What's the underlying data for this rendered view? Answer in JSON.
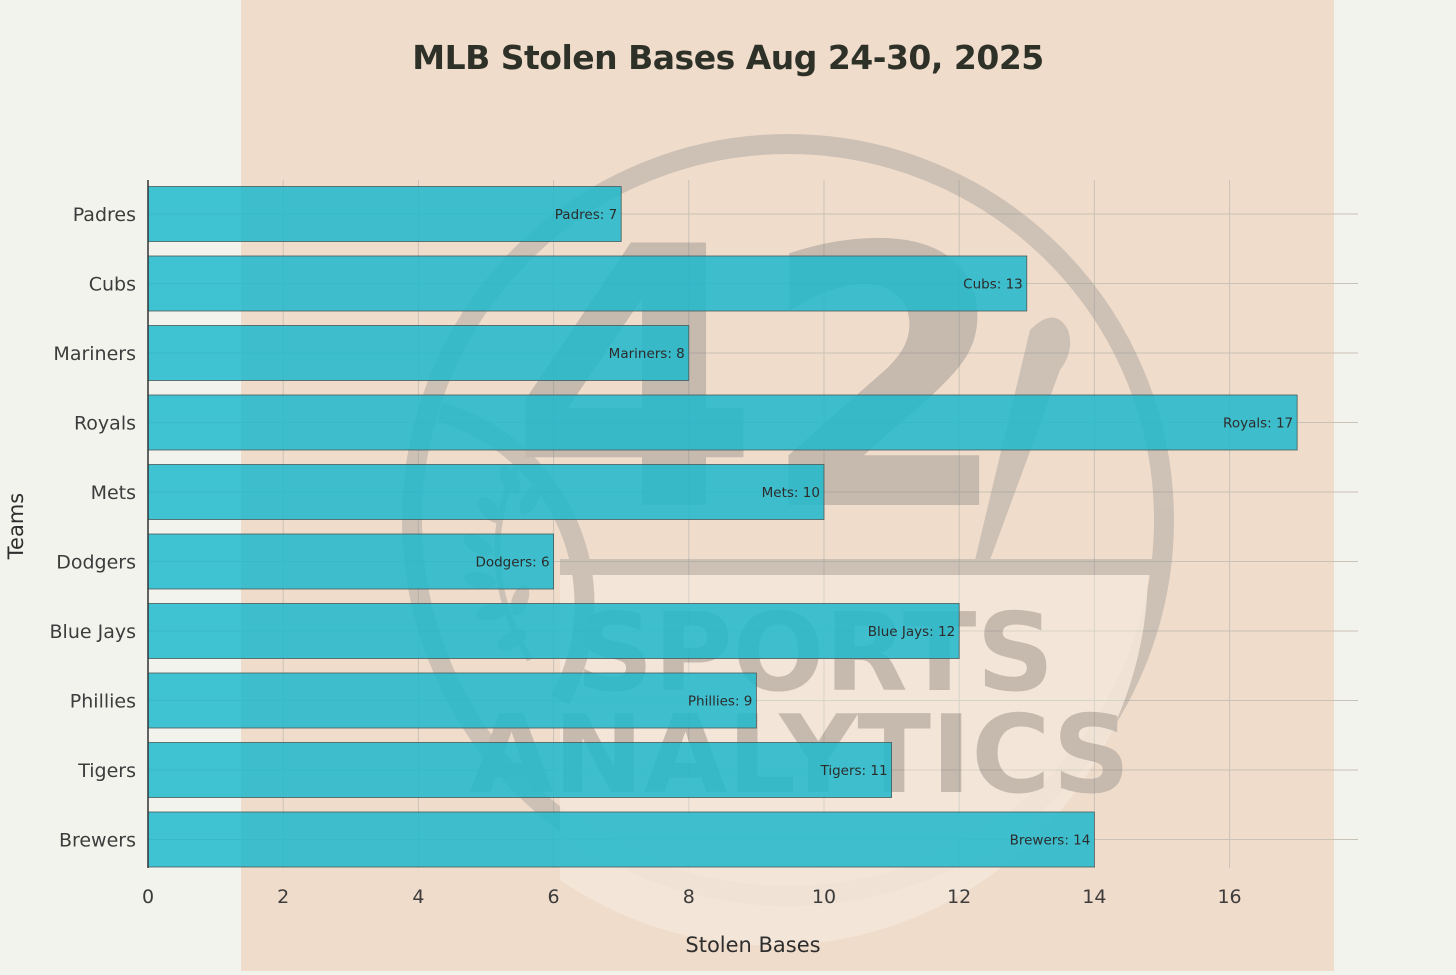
{
  "chart_data": {
    "type": "bar",
    "orientation": "horizontal",
    "title": "MLB Stolen Bases Aug 24-30, 2025",
    "xlabel": "Stolen Bases",
    "ylabel": "Teams",
    "categories": [
      "Padres",
      "Cubs",
      "Mariners",
      "Royals",
      "Mets",
      "Dodgers",
      "Blue Jays",
      "Phillies",
      "Tigers",
      "Brewers"
    ],
    "values": [
      7,
      13,
      8,
      17,
      10,
      6,
      12,
      9,
      11,
      14
    ],
    "data_labels": [
      "Padres: 7",
      "Cubs: 13",
      "Mariners: 8",
      "Royals: 17",
      "Mets: 10",
      "Dodgers: 6",
      "Blue Jays: 12",
      "Phillies: 9",
      "Tigers: 11",
      "Brewers: 14"
    ],
    "xlim": [
      0,
      17.9
    ],
    "xticks": [
      0,
      2,
      4,
      6,
      8,
      10,
      12,
      14,
      16
    ],
    "grid": true,
    "legend": "none",
    "bar_color": "#1fb8cd"
  },
  "watermark": {
    "lines": [
      "SPORTS",
      "ANALYTICS"
    ],
    "number": "42"
  },
  "colors": {
    "background": "#f3f3ee",
    "band": "#f0dccb",
    "bar": "#1fb8cd",
    "watermark": "#9a9a9a"
  }
}
